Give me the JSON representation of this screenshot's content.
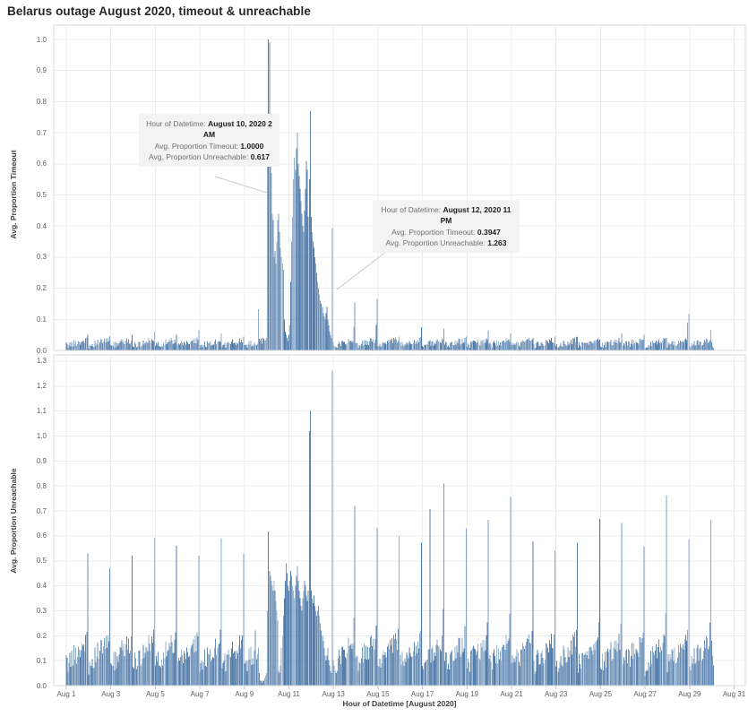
{
  "page": {
    "title": "Belarus outage August 2020, timeout & unreachable"
  },
  "colors": {
    "bar": "#4c78a8",
    "grid": "#ececec",
    "axis_border": "#d9d9d9",
    "tick_mark": "#c4c4c4",
    "leader_line": "#c9c9c9",
    "tick_text": "#5f5f5f",
    "title_text": "#262626",
    "tooltip_bg": "#f3f3f3"
  },
  "axes": {
    "x": {
      "title": "Hour of Datetime [August 2020]",
      "ticks": [
        {
          "label": "Aug 1",
          "day": 0
        },
        {
          "label": "Aug 3",
          "day": 2
        },
        {
          "label": "Aug 5",
          "day": 4
        },
        {
          "label": "Aug 7",
          "day": 6
        },
        {
          "label": "Aug 9",
          "day": 8
        },
        {
          "label": "Aug 11",
          "day": 10
        },
        {
          "label": "Aug 13",
          "day": 12
        },
        {
          "label": "Aug 15",
          "day": 14
        },
        {
          "label": "Aug 17",
          "day": 16
        },
        {
          "label": "Aug 19",
          "day": 18
        },
        {
          "label": "Aug 21",
          "day": 20
        },
        {
          "label": "Aug 23",
          "day": 22
        },
        {
          "label": "Aug 25",
          "day": 24
        },
        {
          "label": "Aug 27",
          "day": 26
        },
        {
          "label": "Aug 29",
          "day": 28
        },
        {
          "label": "Aug 31",
          "day": 30
        }
      ]
    }
  },
  "chart_data": [
    {
      "type": "bar",
      "name": "timeout",
      "ylabel": "Avg. Proportion Timeout",
      "ylim": [
        0,
        1.0
      ],
      "yticks": [
        "0.0",
        "0.1",
        "0.2",
        "0.3",
        "0.4",
        "0.5",
        "0.6",
        "0.7",
        "0.8",
        "0.9",
        "1.0"
      ],
      "bar_color": "#4c78a8",
      "x_unit": "hour",
      "n_days": 30,
      "last_day_hours": 3,
      "baseline": {
        "min": 0.005,
        "ramp": 0.018,
        "noise": 0.022
      },
      "shoulder": 0.5,
      "daily_peaks": [
        0.05,
        0.045,
        0.05,
        0.06,
        0.05,
        0.065,
        0.055,
        0.045,
        null,
        null,
        null,
        null,
        0.154,
        0.165,
        0.045,
        0.075,
        0.07,
        0.045,
        0.065,
        0.055,
        0.04,
        0.045,
        0.045,
        0.035,
        0.056,
        0.05,
        0.04,
        0.118,
        0.065,
        null
      ],
      "hour_overrides": {
        "9:15": 0.132,
        "10:0": 0.04,
        "10:1": 0.66,
        "10:2": 1.0,
        "10:3": 0.99,
        "10:4": 0.62,
        "10:5": 0.57,
        "10:6": 0.44,
        "10:7": 0.42,
        "10:8": 0.3,
        "10:9": 0.32,
        "10:10": 0.28,
        "10:11": 0.35,
        "10:12": 0.42,
        "10:13": 0.44,
        "10:14": 0.38,
        "10:15": 0.33,
        "10:16": 0.3,
        "10:17": 0.28,
        "10:18": 0.26,
        "10:19": 0.1,
        "10:20": 0.06,
        "10:21": 0.05,
        "10:22": 0.04,
        "10:23": 0.03,
        "11:0": 0.05,
        "11:1": 0.08,
        "11:2": 0.22,
        "11:3": 0.35,
        "11:4": 0.43,
        "11:5": 0.55,
        "11:6": 0.62,
        "11:7": 0.58,
        "11:8": 0.65,
        "11:9": 0.7,
        "11:10": 0.6,
        "11:11": 0.56,
        "11:12": 0.52,
        "11:13": 0.48,
        "11:14": 0.44,
        "11:15": 0.4,
        "11:16": 0.38,
        "11:17": 0.45,
        "11:18": 0.52,
        "11:19": 0.61,
        "11:20": 0.58,
        "11:21": 0.43,
        "11:22": 0.55,
        "11:23": 0.77,
        "12:0": 0.43,
        "12:1": 0.38,
        "12:2": 0.35,
        "12:3": 0.33,
        "12:4": 0.3,
        "12:5": 0.28,
        "12:6": 0.25,
        "12:7": 0.22,
        "12:8": 0.2,
        "12:9": 0.18,
        "12:10": 0.16,
        "12:11": 0.15,
        "12:12": 0.14,
        "12:13": 0.12,
        "12:14": 0.11,
        "12:15": 0.1,
        "12:16": 0.12,
        "12:17": 0.14,
        "12:18": 0.1,
        "12:19": 0.08,
        "12:20": 0.06,
        "12:21": 0.05,
        "12:22": 0.04,
        "12:23": 0.3947,
        "28:22": 0.09
      }
    },
    {
      "type": "bar",
      "name": "unreachable",
      "ylabel": "Avg. Proportion Unreachable",
      "ylim": [
        0,
        1.3
      ],
      "yticks": [
        "0.0",
        "0.1",
        "0.2",
        "0.3",
        "0.4",
        "0.5",
        "0.6",
        "0.7",
        "0.8",
        "0.9",
        "1.0",
        "1.1",
        "1.2",
        "1.3"
      ],
      "bar_color": "#4c78a8",
      "x_unit": "hour",
      "n_days": 30,
      "last_day_hours": 3,
      "baseline": {
        "min": 0.04,
        "ramp": 0.1,
        "noise": 0.09
      },
      "shoulder": 0.38,
      "daily_peaks": [
        0.53,
        0.47,
        0.52,
        0.59,
        0.56,
        0.52,
        0.59,
        0.53,
        null,
        null,
        null,
        null,
        0.72,
        0.632,
        0.6,
        0.572,
        0.81,
        0.63,
        0.665,
        0.758,
        0.578,
        0.54,
        0.572,
        0.668,
        0.651,
        0.557,
        0.761,
        0.585,
        0.665,
        null
      ],
      "hour_overrides": {
        "9:12": 0.22,
        "9:16": 0.05,
        "9:17": 0.02,
        "9:18": 0.02,
        "9:19": 0.01,
        "9:20": 0.02,
        "9:21": 0.02,
        "9:22": 0.03,
        "9:23": 0.04,
        "10:0": 0.05,
        "10:1": 0.3,
        "10:2": 0.617,
        "10:3": 0.46,
        "10:4": 0.44,
        "10:5": 0.42,
        "10:6": 0.4,
        "10:7": 0.38,
        "10:8": 0.42,
        "10:9": 0.38,
        "10:10": 0.34,
        "10:11": 0.3,
        "10:12": 0.26,
        "10:13": 0.06,
        "10:14": 0.05,
        "10:15": 0.08,
        "10:16": 0.15,
        "10:17": 0.2,
        "10:18": 0.28,
        "10:19": 0.35,
        "10:20": 0.42,
        "10:21": 0.49,
        "10:22": 0.45,
        "10:23": 0.4,
        "11:0": 0.38,
        "11:1": 0.42,
        "11:2": 0.46,
        "11:3": 0.44,
        "11:4": 0.4,
        "11:5": 0.38,
        "11:6": 0.35,
        "11:7": 0.4,
        "11:8": 0.44,
        "11:9": 0.48,
        "11:10": 0.42,
        "11:11": 0.38,
        "11:12": 0.35,
        "11:13": 0.32,
        "11:14": 0.3,
        "11:15": 0.35,
        "11:16": 0.38,
        "11:17": 0.42,
        "11:18": 0.4,
        "11:19": 0.36,
        "11:20": 0.34,
        "11:21": 0.38,
        "11:22": 1.02,
        "11:23": 1.1,
        "12:0": 0.38,
        "12:1": 0.35,
        "12:2": 0.33,
        "12:3": 0.36,
        "12:4": 0.32,
        "12:5": 0.3,
        "12:6": 0.28,
        "12:7": 0.3,
        "12:8": 0.32,
        "12:9": 0.28,
        "12:10": 0.25,
        "12:11": 0.22,
        "12:12": 0.2,
        "12:13": 0.18,
        "12:14": 0.15,
        "12:15": 0.12,
        "12:16": 0.1,
        "12:17": 0.12,
        "12:18": 0.15,
        "12:19": 0.1,
        "12:20": 0.08,
        "12:21": 0.06,
        "12:22": 0.05,
        "12:23": 1.263,
        "13:0": 0.1,
        "13:1": 0.08,
        "13:2": 0.06,
        "13:3": 0.05,
        "17:8": 0.707,
        "30:0": 0.18,
        "30:1": 0.12,
        "30:2": 0.08
      }
    }
  ],
  "annotations": [
    {
      "target": "timeout",
      "lines": [
        {
          "label": "Hour of Datetime: ",
          "value": "August 10, 2020 2 AM"
        },
        {
          "label": "Avg. Proportion Timeout: ",
          "value": "1.0000"
        },
        {
          "label": "Avg. Proportion Unreachable: ",
          "value": "0.617"
        }
      ]
    },
    {
      "target": "timeout",
      "lines": [
        {
          "label": "Hour of Datetime: ",
          "value": "August 12, 2020 11 PM"
        },
        {
          "label": "Avg. Proportion Timeout: ",
          "value": "0.3947"
        },
        {
          "label": "Avg. Proportion Unreachable: ",
          "value": "1.263"
        }
      ]
    }
  ]
}
